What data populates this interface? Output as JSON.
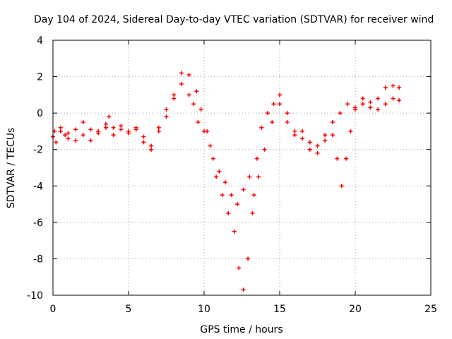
{
  "chart_data": {
    "type": "scatter",
    "title": "Day 104 of 2024, Sidereal Day-to-day VTEC variation (SDTVAR) for receiver wind",
    "xlabel": "GPS time / hours",
    "ylabel": "SDTVAR / TECUs",
    "xlim": [
      0,
      25
    ],
    "ylim": [
      -10,
      4
    ],
    "x_ticks": [
      "0",
      "5",
      "10",
      "15",
      "20",
      "25"
    ],
    "y_ticks": [
      "-10",
      "-8",
      "-6",
      "-4",
      "-2",
      "0",
      "2",
      "4"
    ],
    "grid": true,
    "marker": "+",
    "color": "#ff0000",
    "series": [
      {
        "x": [
          0.0,
          0.2,
          0.5,
          0.8,
          1.0,
          1.5,
          2.0,
          2.5,
          3.0,
          3.5,
          3.7,
          4.0,
          4.5,
          5.0,
          5.5,
          6.0,
          6.5,
          7.0,
          7.5,
          8.0,
          8.5,
          9.0,
          9.3,
          9.6,
          10.0,
          10.4,
          10.8,
          11.2,
          11.6,
          12.0,
          12.3,
          12.6,
          12.9,
          13.2,
          13.5,
          13.8,
          14.2,
          14.6,
          15.0,
          15.5,
          16.0,
          16.5,
          17.0,
          17.5,
          18.0,
          18.5,
          19.0,
          19.5,
          20.0,
          20.5,
          21.0,
          21.5,
          22.0,
          22.5,
          22.9
        ],
        "y": [
          -1.3,
          -1.6,
          -1.0,
          -1.2,
          -1.4,
          -1.5,
          -1.2,
          -1.5,
          -1.1,
          -0.6,
          -0.2,
          -0.8,
          -0.7,
          -1.0,
          -0.8,
          -1.3,
          -1.8,
          -1.0,
          -0.2,
          0.8,
          2.2,
          1.0,
          0.5,
          -0.5,
          -1.0,
          -1.8,
          -3.5,
          -4.5,
          -5.5,
          -6.5,
          -8.5,
          -9.7,
          -8.0,
          -5.5,
          -2.5,
          -0.8,
          0.0,
          0.5,
          1.0,
          0.0,
          -1.2,
          -1.0,
          -1.6,
          -2.2,
          -1.2,
          -0.5,
          0.0,
          0.5,
          0.3,
          0.8,
          0.6,
          0.2,
          0.5,
          0.8,
          0.7
        ]
      },
      {
        "x": [
          0.1,
          0.5,
          1.0,
          1.5,
          2.0,
          2.5,
          3.0,
          3.5,
          4.0,
          4.5,
          5.0,
          5.5,
          6.0,
          6.5,
          7.0,
          7.5,
          8.0,
          8.5,
          9.0,
          9.5,
          9.8,
          10.2,
          10.6,
          11.0,
          11.4,
          11.8,
          12.2,
          12.6,
          13.0,
          13.3,
          13.6,
          14.0,
          14.5,
          15.0,
          15.5,
          16.0,
          16.5,
          17.0,
          17.5,
          18.0,
          18.5,
          18.8,
          19.1,
          19.4,
          19.7,
          20.0,
          20.5,
          21.0,
          21.5,
          22.0,
          22.5,
          22.9
        ],
        "y": [
          -1.0,
          -0.8,
          -1.1,
          -0.9,
          -0.5,
          -0.9,
          -1.0,
          -0.8,
          -1.2,
          -0.9,
          -1.1,
          -0.9,
          -1.6,
          -2.0,
          -0.8,
          0.2,
          1.0,
          1.6,
          2.1,
          1.2,
          0.2,
          -1.0,
          -2.5,
          -3.2,
          -3.8,
          -4.5,
          -5.0,
          -4.2,
          -3.5,
          -4.5,
          -3.5,
          -2.0,
          -0.5,
          0.5,
          -0.5,
          -1.0,
          -1.4,
          -2.0,
          -1.8,
          -1.5,
          -1.2,
          -2.5,
          -4.0,
          -2.5,
          -1.0,
          0.2,
          0.5,
          0.3,
          0.8,
          1.4,
          1.5,
          1.4
        ]
      }
    ]
  }
}
